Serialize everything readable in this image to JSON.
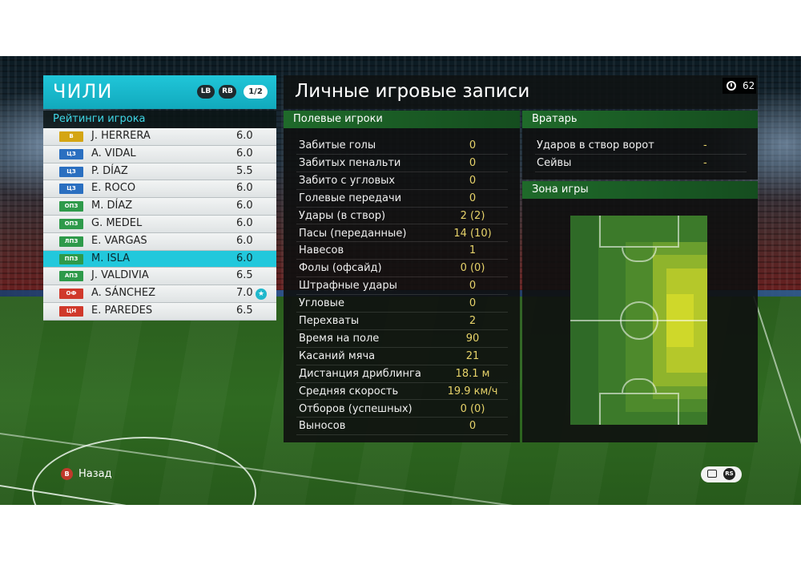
{
  "team": {
    "name": "ЧИЛИ",
    "lb_label": "LB",
    "rb_label": "RB",
    "page": "1/2"
  },
  "ratings_title": "Рейтинги игрока",
  "players": [
    {
      "pos": "В",
      "pos_color": "#d4a514",
      "name": "J. HERRERA",
      "rating": "6.0",
      "selected": false,
      "star": false
    },
    {
      "pos": "ЦЗ",
      "pos_color": "#2a6fc0",
      "name": "A. VIDAL",
      "rating": "6.0",
      "selected": false,
      "star": false
    },
    {
      "pos": "ЦЗ",
      "pos_color": "#2a6fc0",
      "name": "P. DÍAZ",
      "rating": "5.5",
      "selected": false,
      "star": false
    },
    {
      "pos": "ЦЗ",
      "pos_color": "#2a6fc0",
      "name": "E. ROCO",
      "rating": "6.0",
      "selected": false,
      "star": false
    },
    {
      "pos": "ОПЗ",
      "pos_color": "#2e9a4a",
      "name": "M. DÍAZ",
      "rating": "6.0",
      "selected": false,
      "star": false
    },
    {
      "pos": "ОПЗ",
      "pos_color": "#2e9a4a",
      "name": "G. MEDEL",
      "rating": "6.0",
      "selected": false,
      "star": false
    },
    {
      "pos": "ЛПЗ",
      "pos_color": "#2e9a4a",
      "name": "E. VARGAS",
      "rating": "6.0",
      "selected": false,
      "star": false
    },
    {
      "pos": "ППЗ",
      "pos_color": "#2e9a4a",
      "name": "M. ISLA",
      "rating": "6.0",
      "selected": true,
      "star": false
    },
    {
      "pos": "АПЗ",
      "pos_color": "#2e9a4a",
      "name": "J. VALDIVIA",
      "rating": "6.5",
      "selected": false,
      "star": false
    },
    {
      "pos": "ОФ",
      "pos_color": "#d0392b",
      "name": "A. SÁNCHEZ",
      "rating": "7.0",
      "selected": false,
      "star": true
    },
    {
      "pos": "ЦН",
      "pos_color": "#d0392b",
      "name": "E. PAREDES",
      "rating": "6.5",
      "selected": false,
      "star": false
    }
  ],
  "main_title": "Личные игровые записи",
  "timer": "62",
  "field_players": {
    "title": "Полевые игроки",
    "stats": [
      {
        "label": "Забитые голы",
        "value": "0"
      },
      {
        "label": "Забитых пенальти",
        "value": "0"
      },
      {
        "label": "Забито с угловых",
        "value": "0"
      },
      {
        "label": "Голевые передачи",
        "value": "0"
      },
      {
        "label": "Удары (в створ)",
        "value": "2 (2)"
      },
      {
        "label": "Пасы (переданные)",
        "value": "14 (10)"
      },
      {
        "label": "Навесов",
        "value": "1"
      },
      {
        "label": "Фолы (офсайд)",
        "value": "0 (0)"
      },
      {
        "label": "Штрафные удары",
        "value": "0"
      },
      {
        "label": "Угловые",
        "value": "0"
      },
      {
        "label": "Перехваты",
        "value": "2"
      },
      {
        "label": "Время на поле",
        "value": "90"
      },
      {
        "label": "Касаний мяча",
        "value": "21"
      },
      {
        "label": "Дистанция дриблинга",
        "value": "18.1 м"
      },
      {
        "label": "Средняя скорость",
        "value": "19.9 км/ч"
      },
      {
        "label": "Отборов (успешных)",
        "value": "0 (0)"
      },
      {
        "label": "Выносов",
        "value": "0"
      }
    ]
  },
  "goalkeeper": {
    "title": "Вратарь",
    "stats": [
      {
        "label": "Ударов в створ ворот",
        "value": "-"
      },
      {
        "label": "Сейвы",
        "value": "-"
      }
    ]
  },
  "zone": {
    "title": "Зона игры"
  },
  "footer": {
    "back_button": "B",
    "back_label": "Назад",
    "rs_label": "RS"
  }
}
